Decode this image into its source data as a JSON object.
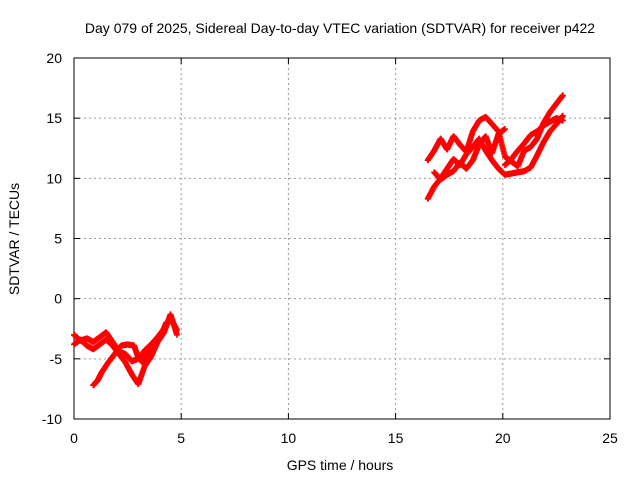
{
  "chart_data": {
    "type": "scatter",
    "title": "Day 079 of 2025, Sidereal Day-to-day VTEC variation (SDTVAR) for receiver p422",
    "xlabel": "GPS time / hours",
    "ylabel": "SDTVAR / TECUs",
    "xlim": [
      0,
      25
    ],
    "ylim": [
      -10,
      20
    ],
    "xticks": [
      "0",
      "5",
      "10",
      "15",
      "20",
      "25"
    ],
    "yticks": [
      "-10",
      "-5",
      "0",
      "5",
      "10",
      "15",
      "20"
    ],
    "grid": true,
    "legend": "none",
    "marker": "plus",
    "color": "#ff0000",
    "series": [
      {
        "x": [
          0.0,
          0.3,
          0.6,
          0.9,
          1.2,
          1.5,
          1.8,
          2.1,
          2.4,
          2.7,
          3.0,
          3.3,
          3.6,
          3.9,
          4.2,
          4.5,
          4.8
        ],
        "values": [
          -3.0,
          -3.5,
          -3.3,
          -3.6,
          -3.2,
          -2.8,
          -3.6,
          -4.4,
          -4.6,
          -5.2,
          -5.0,
          -4.3,
          -3.8,
          -3.2,
          -2.5,
          -1.6,
          -2.6
        ]
      },
      {
        "x": [
          0.0,
          0.3,
          0.6,
          0.9,
          1.2,
          1.5,
          1.8,
          2.1,
          2.4,
          2.7,
          3.0,
          3.3,
          3.6,
          3.9,
          4.2,
          4.5,
          4.8
        ],
        "values": [
          -3.8,
          -3.4,
          -3.9,
          -4.2,
          -3.8,
          -3.4,
          -3.9,
          -4.6,
          -5.3,
          -6.3,
          -7.1,
          -5.6,
          -4.8,
          -3.6,
          -2.8,
          -1.3,
          -3.0
        ]
      },
      {
        "x": [
          0.9,
          1.1,
          1.3,
          1.6,
          1.9,
          2.2,
          2.5,
          2.8,
          3.0,
          3.2,
          3.4,
          3.7,
          4.0,
          4.3,
          4.6
        ],
        "values": [
          -7.2,
          -6.8,
          -6.1,
          -5.3,
          -4.6,
          -3.9,
          -3.8,
          -3.9,
          -4.9,
          -5.3,
          -4.6,
          -3.9,
          -3.3,
          -2.0,
          -1.8
        ]
      },
      {
        "x": [
          16.5,
          16.8,
          17.1,
          17.4,
          17.7,
          18.0,
          18.3,
          18.6,
          18.9,
          19.2,
          19.5,
          19.8,
          20.1,
          20.4,
          20.7,
          21.0,
          21.3,
          21.6,
          21.9,
          22.2,
          22.5,
          22.8
        ],
        "values": [
          8.3,
          9.3,
          10.0,
          10.8,
          11.6,
          11.1,
          12.0,
          12.6,
          13.3,
          12.3,
          11.5,
          10.8,
          10.3,
          10.4,
          10.5,
          10.6,
          10.9,
          11.9,
          13.0,
          13.9,
          14.5,
          15.2
        ]
      },
      {
        "x": [
          16.5,
          16.8,
          17.1,
          17.4,
          17.7,
          18.0,
          18.3,
          18.6,
          18.9,
          19.2,
          19.5,
          19.8,
          20.1,
          20.4,
          20.7,
          21.0,
          21.3,
          21.6,
          21.9,
          22.2,
          22.5,
          22.8
        ],
        "values": [
          11.5,
          12.3,
          13.3,
          12.4,
          13.5,
          12.8,
          12.2,
          13.9,
          14.8,
          15.1,
          14.5,
          13.9,
          11.8,
          11.4,
          11.0,
          12.3,
          12.6,
          13.3,
          14.6,
          15.5,
          16.2,
          16.9
        ]
      },
      {
        "x": [
          16.8,
          17.1,
          17.4,
          17.7,
          18.0,
          18.3,
          18.6,
          18.9,
          19.2,
          19.5,
          19.8,
          20.1
        ],
        "values": [
          10.5,
          9.9,
          10.3,
          10.6,
          11.3,
          10.8,
          11.5,
          12.8,
          13.5,
          12.1,
          13.7,
          14.1
        ]
      },
      {
        "x": [
          20.1,
          20.4,
          20.7,
          21.0,
          21.3,
          21.6,
          21.9,
          22.2,
          22.5,
          22.8
        ],
        "values": [
          11.1,
          11.6,
          12.3,
          12.9,
          13.6,
          13.9,
          14.4,
          14.7,
          15.0,
          14.8
        ]
      }
    ]
  }
}
